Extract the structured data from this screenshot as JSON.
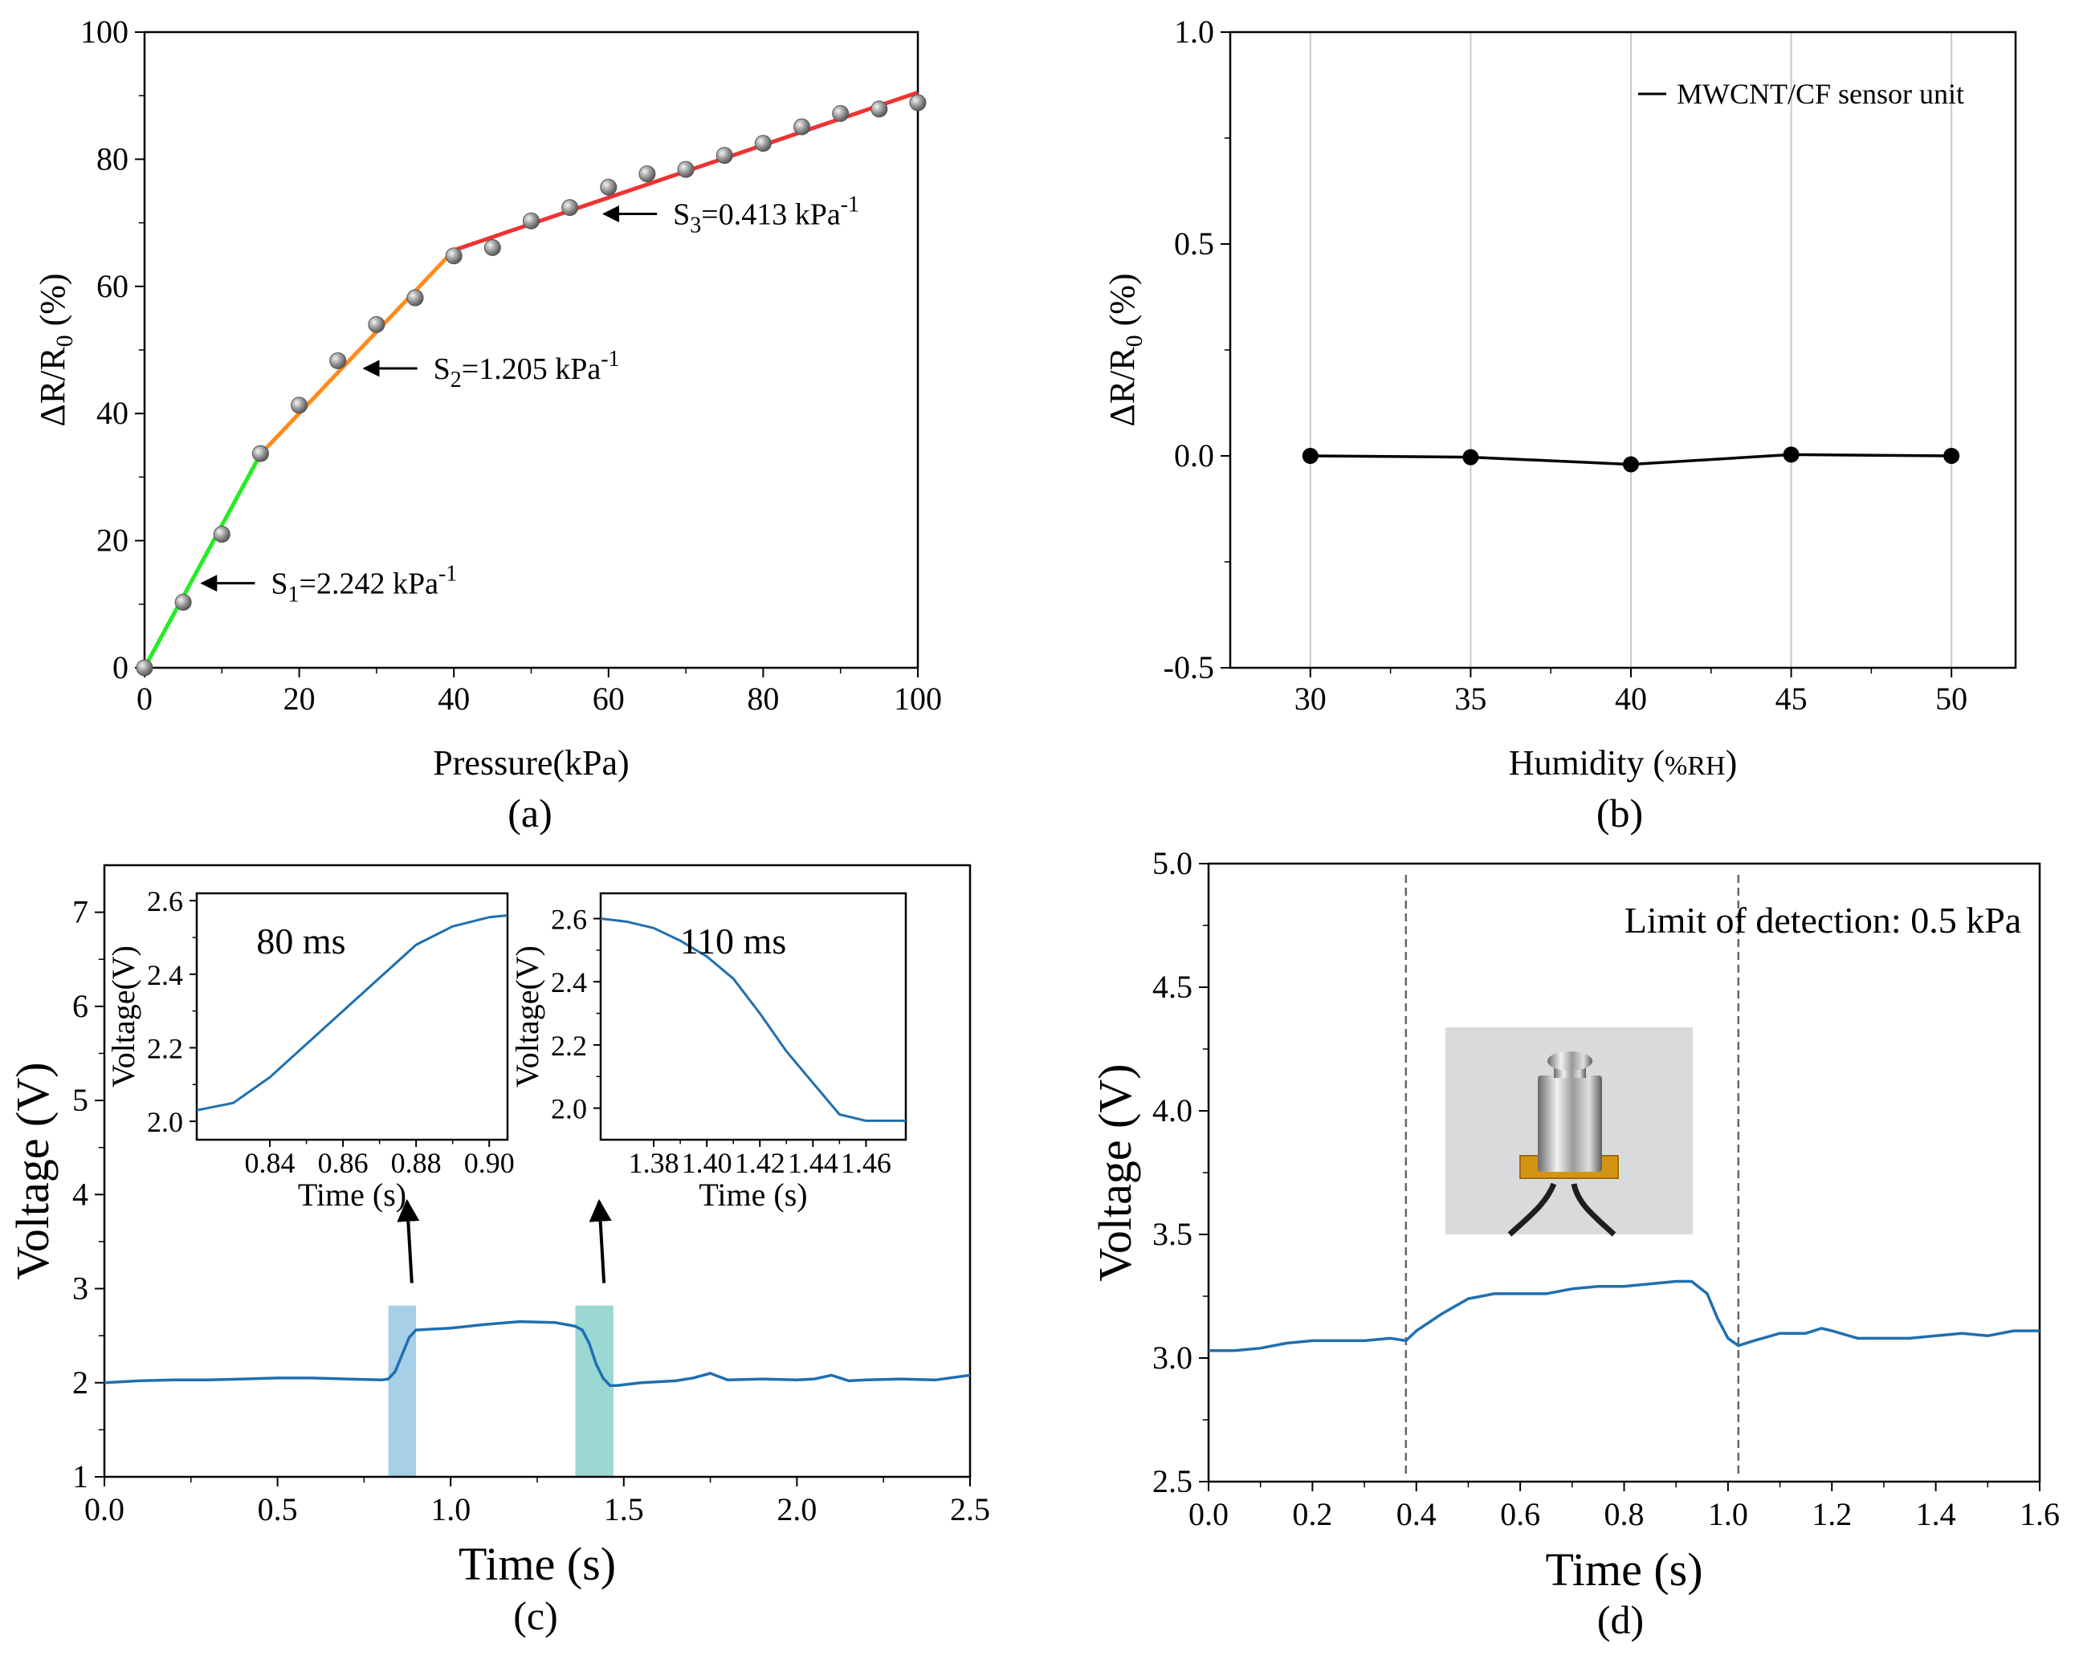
{
  "chart_data": [
    {
      "panel": "(a)",
      "type": "scatter",
      "xlabel": "Pressure(kPa)",
      "ylabel": "ΔR/R0 (%)",
      "xlim": [
        0,
        100
      ],
      "ylim": [
        0,
        100
      ],
      "xticks": [
        0,
        20,
        40,
        60,
        80,
        100
      ],
      "yticks": [
        0,
        20,
        40,
        60,
        80,
        100
      ],
      "points": {
        "x": [
          0,
          5,
          10,
          15,
          20,
          25,
          30,
          35,
          40,
          45,
          50,
          55,
          60,
          65,
          70,
          75,
          80,
          85,
          90,
          95,
          100
        ],
        "y": [
          0,
          10.3,
          21.0,
          33.7,
          41.3,
          48.3,
          54.0,
          58.2,
          64.8,
          66.1,
          70.3,
          72.4,
          75.6,
          77.7,
          78.4,
          80.6,
          82.5,
          85.1,
          87.2,
          87.9,
          88.9
        ]
      },
      "fits": [
        {
          "label": "S1=2.242 kPa-1",
          "color": "#22ee22",
          "x": [
            0,
            15
          ],
          "y": [
            0,
            33.6
          ]
        },
        {
          "label": "S2=1.205 kPa-1",
          "color": "#ff8c1a",
          "x": [
            15,
            40
          ],
          "y": [
            33.6,
            65.7
          ]
        },
        {
          "label": "S3=0.413 kPa-1",
          "color": "#ee3333",
          "x": [
            40,
            100
          ],
          "y": [
            65.7,
            90.5
          ]
        }
      ],
      "annotations": [
        {
          "prefix": "S",
          "sub": "1",
          "text": "=2.242 kPa",
          "sup": "-1",
          "arrow_to": [
            7,
            13.3
          ]
        },
        {
          "prefix": "S",
          "sub": "2",
          "text": "=1.205 kPa",
          "sup": "-1",
          "arrow_to": [
            28,
            47.1
          ]
        },
        {
          "prefix": "S",
          "sub": "3",
          "text": "=0.413 kPa",
          "sup": "-1",
          "arrow_to": [
            59,
            71.4
          ]
        }
      ],
      "panel_label": "(a)"
    },
    {
      "panel": "(b)",
      "type": "line",
      "xlabel": "Humidity (%RH)",
      "ylabel": "ΔR/R0 (%)",
      "xlim": [
        27.5,
        52
      ],
      "ylim": [
        -0.5,
        1.0
      ],
      "xticks": [
        30,
        35,
        40,
        45,
        50
      ],
      "ytick_labels": [
        "-0.5",
        "0.0",
        "0.5",
        "1.0"
      ],
      "yticks": [
        -0.5,
        0.0,
        0.5,
        1.0
      ],
      "grid": "vertical",
      "series": [
        {
          "name": "MWCNT/CF sensor unit",
          "x": [
            30,
            35,
            40,
            45,
            50
          ],
          "y": [
            0.0,
            -0.003,
            -0.02,
            0.003,
            0.0
          ]
        }
      ],
      "legend": "top-right",
      "panel_label": "(b)"
    },
    {
      "panel": "(c)",
      "type": "line",
      "xlabel": "Time (s)",
      "ylabel": "Voltage (V)",
      "xlim": [
        0,
        2.5
      ],
      "ylim": [
        1,
        7.5
      ],
      "xticks": [
        0.0,
        0.5,
        1.0,
        1.5,
        2.0,
        2.5
      ],
      "xtick_labels": [
        "0.0",
        "0.5",
        "1.0",
        "1.5",
        "2.0",
        "2.5"
      ],
      "yticks": [
        1,
        2,
        3,
        4,
        5,
        6,
        7
      ],
      "series": [
        {
          "x": [
            0,
            0.1,
            0.2,
            0.3,
            0.4,
            0.5,
            0.6,
            0.7,
            0.8,
            0.82,
            0.84,
            0.86,
            0.88,
            0.9,
            0.95,
            1.0,
            1.1,
            1.2,
            1.3,
            1.36,
            1.38,
            1.4,
            1.42,
            1.44,
            1.46,
            1.48,
            1.55,
            1.65,
            1.7,
            1.75,
            1.8,
            1.9,
            2.0,
            2.05,
            2.1,
            2.15,
            2.2,
            2.3,
            2.4,
            2.5
          ],
          "y": [
            2.0,
            2.02,
            2.03,
            2.03,
            2.04,
            2.05,
            2.05,
            2.04,
            2.03,
            2.04,
            2.12,
            2.3,
            2.48,
            2.56,
            2.57,
            2.58,
            2.62,
            2.65,
            2.64,
            2.6,
            2.56,
            2.42,
            2.2,
            2.05,
            1.97,
            1.97,
            2.0,
            2.02,
            2.05,
            2.1,
            2.03,
            2.04,
            2.03,
            2.04,
            2.08,
            2.02,
            2.03,
            2.04,
            2.03,
            2.08
          ]
        }
      ],
      "highlights": [
        {
          "x": [
            0.82,
            0.9
          ],
          "ymax": 2.82,
          "color": "#a7cfe8"
        },
        {
          "x": [
            1.36,
            1.47
          ],
          "ymax": 2.82,
          "color": "#9bd8d3"
        }
      ],
      "insets": [
        {
          "ms_label": "80 ms",
          "xlabel": "Time (s)",
          "ylabel": "Voltage(V)",
          "xlim": [
            0.82,
            0.905
          ],
          "ylim": [
            1.95,
            2.62
          ],
          "xticks": [
            0.84,
            0.86,
            0.88,
            0.9
          ],
          "xtick_labels": [
            "0.84",
            "0.86",
            "0.88",
            "0.90"
          ],
          "yticks": [
            2.0,
            2.2,
            2.4,
            2.6
          ],
          "ytick_labels": [
            "2.0",
            "2.2",
            "2.4",
            "2.6"
          ],
          "x": [
            0.82,
            0.83,
            0.84,
            0.85,
            0.86,
            0.87,
            0.88,
            0.89,
            0.9,
            0.905
          ],
          "y": [
            2.03,
            2.05,
            2.12,
            2.21,
            2.3,
            2.39,
            2.48,
            2.53,
            2.555,
            2.56
          ]
        },
        {
          "ms_label": "110 ms",
          "xlabel": "Time (s)",
          "ylabel": "Voltage(V)",
          "xlim": [
            1.36,
            1.475
          ],
          "ylim": [
            1.9,
            2.68
          ],
          "xticks": [
            1.38,
            1.4,
            1.42,
            1.44,
            1.46
          ],
          "xtick_labels": [
            "1.38",
            "1.40",
            "1.42",
            "1.44",
            "1.46"
          ],
          "yticks": [
            2.0,
            2.2,
            2.4,
            2.6
          ],
          "ytick_labels": [
            "2.0",
            "2.2",
            "2.4",
            "2.6"
          ],
          "x": [
            1.36,
            1.37,
            1.38,
            1.39,
            1.4,
            1.41,
            1.42,
            1.43,
            1.44,
            1.45,
            1.46,
            1.475
          ],
          "y": [
            2.6,
            2.59,
            2.57,
            2.53,
            2.48,
            2.41,
            2.3,
            2.18,
            2.08,
            1.98,
            1.96,
            1.96
          ]
        }
      ],
      "panel_label": "(c)"
    },
    {
      "panel": "(d)",
      "type": "line",
      "xlabel": "Time (s)",
      "ylabel": "Voltage (V)",
      "xlim": [
        0,
        1.6
      ],
      "ylim": [
        2.5,
        5.0
      ],
      "xticks": [
        0.0,
        0.2,
        0.4,
        0.6,
        0.8,
        1.0,
        1.2,
        1.4,
        1.6
      ],
      "xtick_labels": [
        "0.0",
        "0.2",
        "0.4",
        "0.6",
        "0.8",
        "1.0",
        "1.2",
        "1.4",
        "1.6"
      ],
      "yticks": [
        2.5,
        3.0,
        3.5,
        4.0,
        4.5,
        5.0
      ],
      "ytick_labels": [
        "2.5",
        "3.0",
        "3.5",
        "4.0",
        "4.5",
        "5.0"
      ],
      "series": [
        {
          "x": [
            0,
            0.05,
            0.1,
            0.15,
            0.2,
            0.25,
            0.3,
            0.35,
            0.38,
            0.4,
            0.45,
            0.5,
            0.55,
            0.6,
            0.65,
            0.7,
            0.75,
            0.8,
            0.85,
            0.9,
            0.93,
            0.96,
            0.98,
            1.0,
            1.02,
            1.05,
            1.1,
            1.15,
            1.18,
            1.2,
            1.25,
            1.3,
            1.35,
            1.4,
            1.45,
            1.5,
            1.55,
            1.6
          ],
          "y": [
            3.03,
            3.03,
            3.04,
            3.06,
            3.07,
            3.07,
            3.07,
            3.08,
            3.07,
            3.11,
            3.18,
            3.24,
            3.26,
            3.26,
            3.26,
            3.28,
            3.29,
            3.29,
            3.3,
            3.31,
            3.31,
            3.26,
            3.16,
            3.08,
            3.05,
            3.07,
            3.1,
            3.1,
            3.12,
            3.11,
            3.08,
            3.08,
            3.08,
            3.09,
            3.1,
            3.09,
            3.11,
            3.11
          ]
        }
      ],
      "vlines": [
        0.38,
        1.02
      ],
      "annotation": "Limit of detection: 0.5 kPa",
      "panel_label": "(d)"
    }
  ]
}
